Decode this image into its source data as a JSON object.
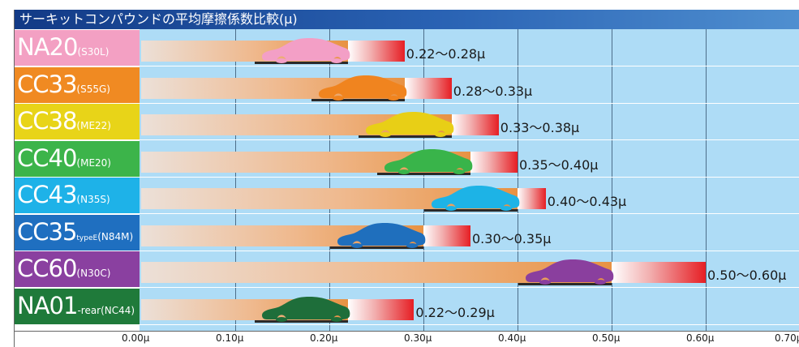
{
  "chart_data": {
    "type": "bar",
    "title": "サーキットコンパウンドの平均摩擦係数比較(μ)",
    "xlim": [
      0,
      0.7
    ],
    "xticks": [
      "0.00μ",
      "0.10μ",
      "0.20μ",
      "0.30μ",
      "0.40μ",
      "0.50μ",
      "0.60μ",
      "0.70μ"
    ],
    "grid": true,
    "rows": [
      {
        "name": "NA20",
        "code": "(S30L)",
        "min": 0.22,
        "max": 0.28,
        "label": "0.22～0.28μ",
        "color": "#f3a0c3",
        "text_color": "#ffffff",
        "car_color": "#f39fc6"
      },
      {
        "name": "CC33",
        "code": "(S55G)",
        "min": 0.28,
        "max": 0.33,
        "label": "0.28～0.33μ",
        "color": "#f08a22",
        "text_color": "#ffffff",
        "car_color": "#f0841f"
      },
      {
        "name": "CC38",
        "code": "(ME22)",
        "min": 0.33,
        "max": 0.38,
        "label": "0.33～0.38μ",
        "color": "#e8d418",
        "text_color": "#ffffff",
        "car_color": "#e8cf16"
      },
      {
        "name": "CC40",
        "code": "(ME20)",
        "min": 0.35,
        "max": 0.4,
        "label": "0.35～0.40μ",
        "color": "#3cb44a",
        "text_color": "#ffffff",
        "car_color": "#39b44a"
      },
      {
        "name": "CC43",
        "code": "(N35S)",
        "min": 0.4,
        "max": 0.43,
        "label": "0.40～0.43μ",
        "color": "#1eb2e8",
        "text_color": "#ffffff",
        "car_color": "#1db3e6"
      },
      {
        "name": "CC35",
        "typeE": "typeE",
        "code": "(N84M)",
        "min": 0.3,
        "max": 0.35,
        "label": "0.30～0.35μ",
        "color": "#1f6fc0",
        "text_color": "#ffffff",
        "car_color": "#1f6fbd"
      },
      {
        "name": "CC60",
        "code": "(N30C)",
        "min": 0.5,
        "max": 0.6,
        "label": "0.50～0.60μ",
        "color": "#8a40a0",
        "text_color": "#ffffff",
        "car_color": "#8a3f9e"
      },
      {
        "name": "NA01",
        "rear": "-rear",
        "code": "(NC44)",
        "min": 0.22,
        "max": 0.29,
        "label": "0.22～0.29μ",
        "color": "#1f7a3a",
        "text_color": "#ffffff",
        "car_color": "#1e6e3a"
      }
    ]
  }
}
